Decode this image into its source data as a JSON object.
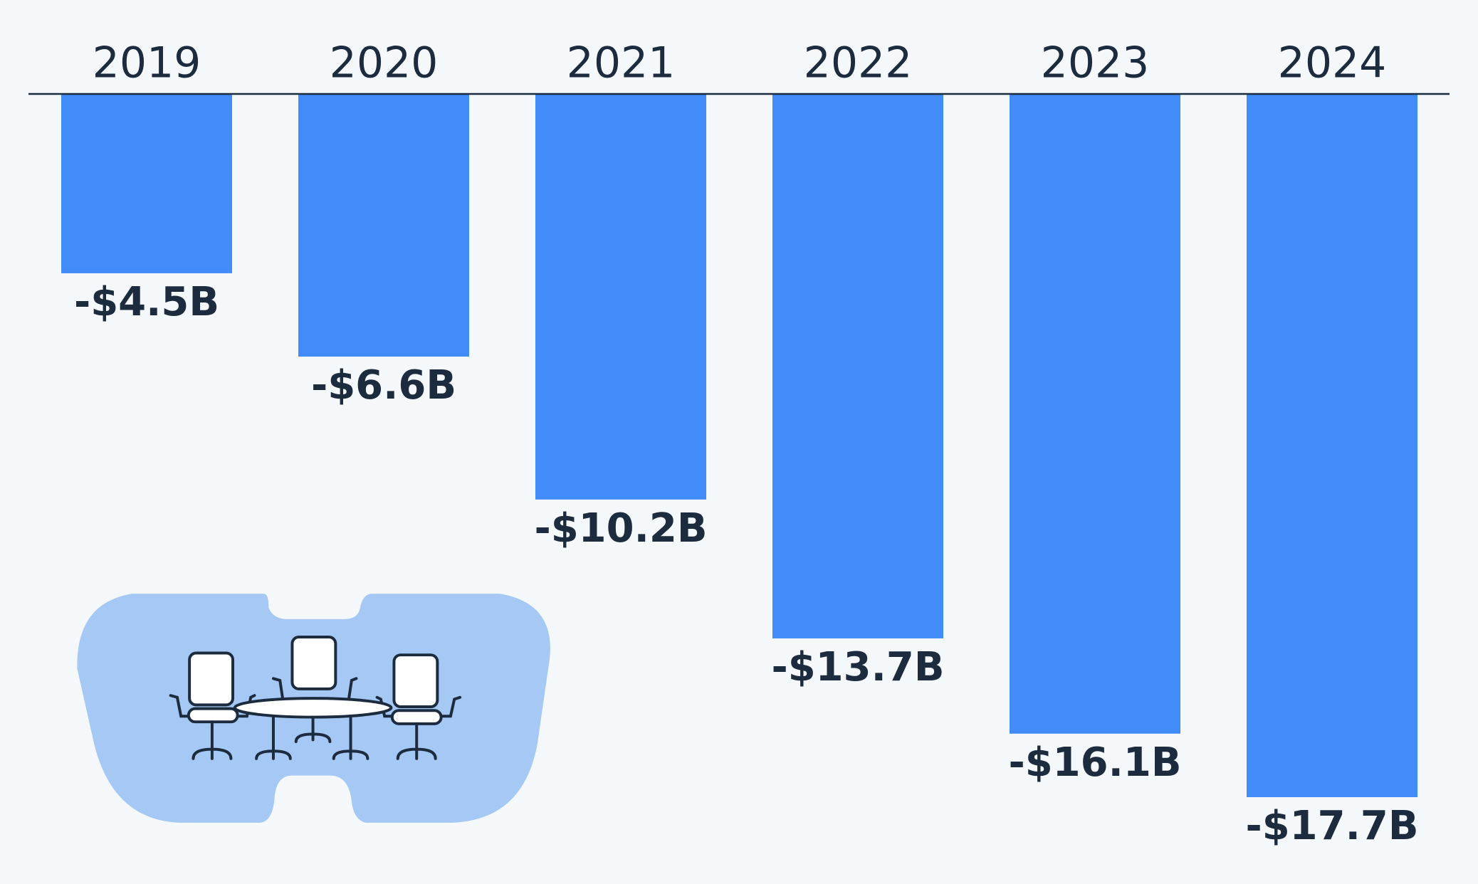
{
  "chart_data": {
    "type": "bar",
    "categories": [
      "2019",
      "2020",
      "2021",
      "2022",
      "2023",
      "2024"
    ],
    "values": [
      -4.5,
      -6.6,
      -10.2,
      -13.7,
      -16.1,
      -17.7
    ],
    "value_labels": [
      "-$4.5B",
      "-$6.6B",
      "-$10.2B",
      "-$13.7B",
      "-$16.1B",
      "-$17.7B"
    ],
    "color": "#418cf9"
  }
}
